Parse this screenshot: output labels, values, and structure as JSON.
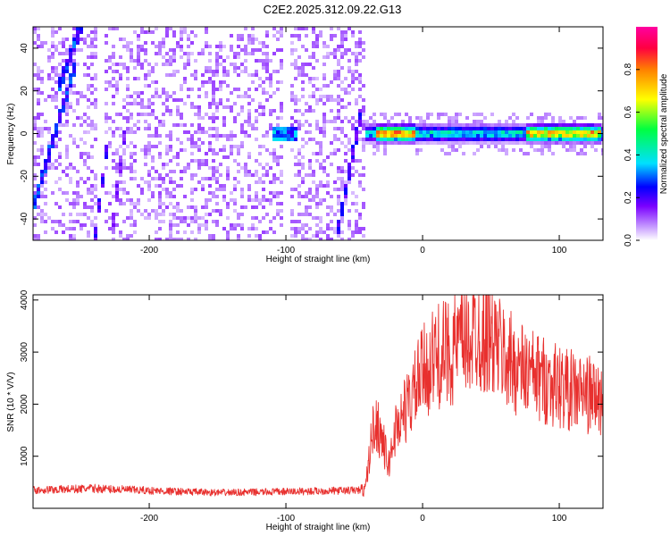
{
  "figure": {
    "title": "C2E2.2025.312.09.22.G13"
  },
  "chart_data": [
    {
      "type": "heatmap",
      "xlabel": "Height of straight line (km)",
      "ylabel": "Frequency (Hz)",
      "xlim": [
        -285,
        132
      ],
      "ylim": [
        -50,
        50
      ],
      "x_ticks": [
        "-200",
        "-100",
        "0",
        "100"
      ],
      "x_tick_values": [
        -200,
        -100,
        0,
        100
      ],
      "y_ticks": [
        "-40",
        "-20",
        "0",
        "20",
        "40"
      ],
      "y_tick_values": [
        -40,
        -20,
        0,
        20,
        40
      ],
      "colorbar": {
        "label": "Normalized spectral amplitude",
        "range": [
          0,
          1
        ],
        "ticks": [
          "0.0",
          "0.2",
          "0.4",
          "0.6",
          "0.8"
        ],
        "tick_values": [
          0.0,
          0.2,
          0.4,
          0.6,
          0.8
        ],
        "colormap": [
          "#ffffff",
          "#c9a0ff",
          "#7a00ff",
          "#0000ff",
          "#00e0ff",
          "#00ff40",
          "#ffff00",
          "#ff8000",
          "#ff0040",
          "#ff00a0"
        ]
      },
      "features": {
        "noise_region_x": [
          -285,
          -42
        ],
        "noise_density": 0.35,
        "noise_level": 0.1,
        "blank_columns_x": [
          -235,
          -100
        ],
        "carrier_start_x": -42,
        "carrier_frequency": 0,
        "carrier_strong_segments": [
          [
            -35,
            -5
          ],
          [
            75,
            130
          ]
        ],
        "diagonal_tracks": [
          {
            "x": [
              -285,
              -255
            ],
            "y": [
              -35,
              30
            ],
            "level": 0.25
          },
          {
            "x": [
              -267,
              -250
            ],
            "y": [
              20,
              50
            ],
            "level": 0.25
          },
          {
            "x": [
              -240,
              -230
            ],
            "y": [
              -50,
              -2
            ],
            "level": 0.2
          },
          {
            "x": [
              -228,
              -218
            ],
            "y": [
              -50,
              0
            ],
            "level": 0.15
          },
          {
            "x": [
              -62,
              -45
            ],
            "y": [
              -45,
              10
            ],
            "level": 0.2
          }
        ],
        "blob": {
          "x": [
            -110,
            -92
          ],
          "y": [
            -3,
            3
          ],
          "level": 0.3
        }
      }
    },
    {
      "type": "line",
      "xlabel": "Height of straight line (km)",
      "ylabel": "SNR (10 * V/V)",
      "xlim": [
        -285,
        132
      ],
      "ylim": [
        0,
        4100
      ],
      "x_ticks": [
        "-200",
        "-100",
        "0",
        "100"
      ],
      "x_tick_values": [
        -200,
        -100,
        0,
        100
      ],
      "y_ticks": [
        "1000",
        "2000",
        "3000",
        "4000"
      ],
      "y_tick_values": [
        1000,
        2000,
        3000,
        4000
      ],
      "series_color": "#e8302e",
      "envelope": {
        "x": [
          -285,
          -240,
          -200,
          -150,
          -100,
          -60,
          -42,
          -38,
          -35,
          -30,
          -25,
          -20,
          -15,
          -10,
          -5,
          0,
          10,
          20,
          30,
          40,
          50,
          60,
          70,
          80,
          90,
          100,
          110,
          120,
          132
        ],
        "y": [
          350,
          380,
          340,
          300,
          320,
          340,
          350,
          1200,
          1700,
          1400,
          800,
          1500,
          1800,
          2000,
          2300,
          2600,
          2900,
          3000,
          3200,
          3400,
          3300,
          2900,
          2700,
          2550,
          2450,
          2350,
          2250,
          2200,
          2050
        ]
      },
      "noise_amplitude": 0.22
    }
  ]
}
